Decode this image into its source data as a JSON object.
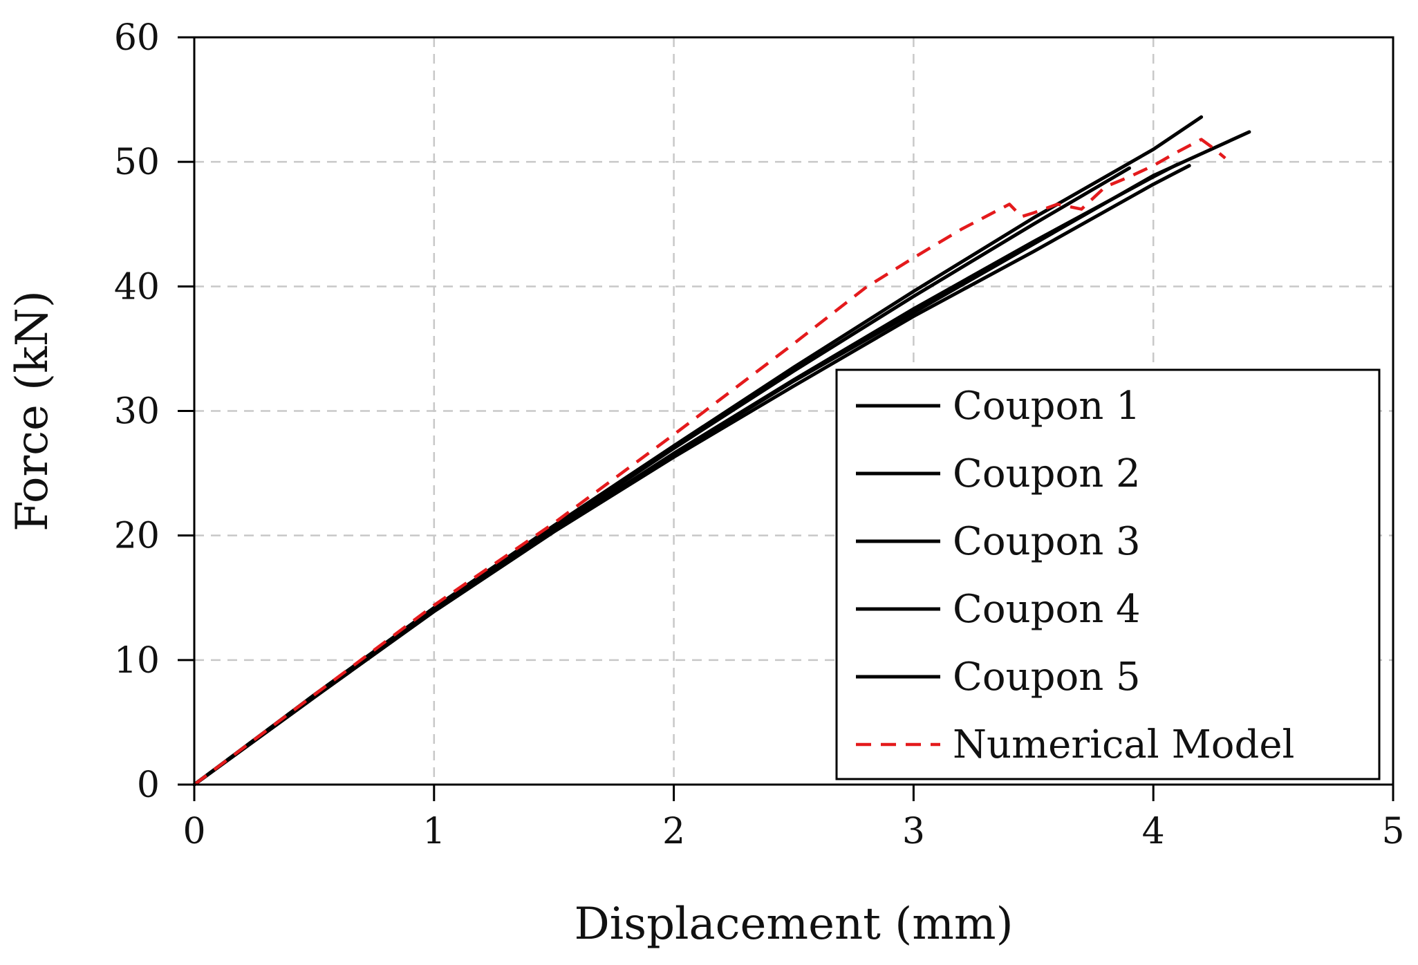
{
  "chart_data": {
    "type": "line",
    "xlabel": "Displacement (mm)",
    "ylabel": "Force (kN)",
    "xlim": [
      0,
      5
    ],
    "ylim": [
      0,
      60
    ],
    "xticks": [
      0,
      1,
      2,
      3,
      4,
      5
    ],
    "yticks": [
      0,
      10,
      20,
      30,
      40,
      50,
      60
    ],
    "x_tick_labels": [
      "0",
      "1",
      "2",
      "3",
      "4",
      "5"
    ],
    "y_tick_labels": [
      "0",
      "10",
      "20",
      "30",
      "40",
      "50",
      "60"
    ],
    "grid": true,
    "legend_position": "bottom-right",
    "series": [
      {
        "name": "Coupon 1",
        "color": "#000000",
        "style": "solid",
        "x": [
          0,
          0.5,
          1.0,
          1.5,
          2.0,
          2.5,
          3.0,
          3.5,
          4.0,
          4.2
        ],
        "y": [
          0,
          7.2,
          14.2,
          20.8,
          27.2,
          33.5,
          39.6,
          45.5,
          51.0,
          53.6
        ]
      },
      {
        "name": "Coupon 2",
        "color": "#000000",
        "style": "solid",
        "x": [
          0,
          0.5,
          1.0,
          1.5,
          2.0,
          2.5,
          3.0,
          3.5,
          4.0,
          4.4
        ],
        "y": [
          0,
          7.1,
          14.0,
          20.5,
          26.5,
          32.4,
          37.9,
          43.4,
          48.9,
          52.4
        ]
      },
      {
        "name": "Coupon 3",
        "color": "#000000",
        "style": "solid",
        "x": [
          0,
          0.5,
          1.0,
          1.5,
          2.0,
          2.5,
          3.0,
          3.5,
          4.0,
          4.15
        ],
        "y": [
          0,
          7.0,
          13.9,
          20.3,
          26.3,
          32.0,
          37.6,
          42.8,
          48.2,
          49.7
        ]
      },
      {
        "name": "Coupon 4",
        "color": "#000000",
        "style": "solid",
        "x": [
          0,
          0.5,
          1.0,
          1.5,
          2.0,
          2.5,
          3.0,
          3.5,
          3.9
        ],
        "y": [
          0,
          7.1,
          14.1,
          20.6,
          27.0,
          33.2,
          39.2,
          45.0,
          49.5
        ]
      },
      {
        "name": "Coupon 5",
        "color": "#000000",
        "style": "solid",
        "x": [
          0,
          0.5,
          1.0,
          1.5,
          2.0,
          2.5,
          3.0,
          3.5,
          4.0,
          4.1
        ],
        "y": [
          0,
          7.0,
          14.0,
          20.4,
          26.6,
          32.5,
          38.2,
          43.6,
          48.8,
          49.8
        ]
      },
      {
        "name": "Numerical Model",
        "color": "#e41a1c",
        "style": "dashed",
        "x": [
          0,
          0.5,
          1.0,
          1.5,
          2.0,
          2.5,
          2.8,
          3.0,
          3.2,
          3.4,
          3.45,
          3.5,
          3.6,
          3.7,
          3.8,
          3.9,
          4.0,
          4.1,
          4.2,
          4.25,
          4.3
        ],
        "y": [
          0,
          7.2,
          14.4,
          21.0,
          28.1,
          35.4,
          39.9,
          42.3,
          44.6,
          46.6,
          45.6,
          45.9,
          46.6,
          46.2,
          48.0,
          48.8,
          49.7,
          50.8,
          51.8,
          51.1,
          50.3
        ]
      }
    ]
  }
}
